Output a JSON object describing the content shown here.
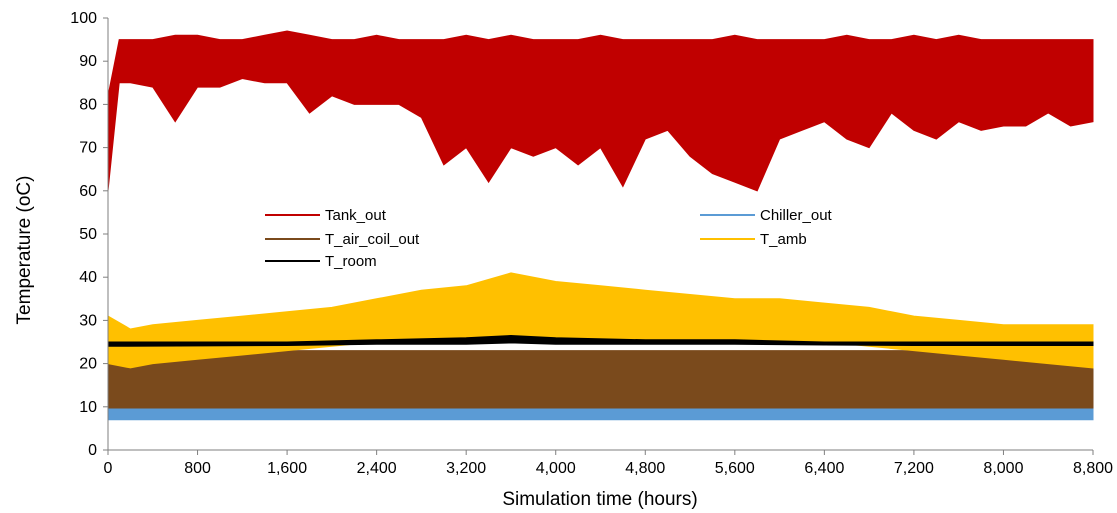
{
  "chart_data": {
    "type": "line",
    "title": "",
    "xlabel": "Simulation time (hours)",
    "ylabel": "Temperature (oC)",
    "xlim": [
      0,
      8800
    ],
    "ylim": [
      0,
      100
    ],
    "x_ticks": [
      0,
      800,
      1600,
      2400,
      3200,
      4000,
      4800,
      5600,
      6400,
      7200,
      8000,
      8800
    ],
    "x_tick_labels": [
      "0",
      "800",
      "1,600",
      "2,400",
      "3,200",
      "4,000",
      "4,800",
      "5,600",
      "6,400",
      "7,200",
      "8,000",
      "8,800"
    ],
    "y_ticks": [
      0,
      10,
      20,
      30,
      40,
      50,
      60,
      70,
      80,
      90,
      100
    ],
    "y_tick_labels": [
      "0",
      "10",
      "20",
      "30",
      "40",
      "50",
      "60",
      "70",
      "80",
      "90",
      "100"
    ],
    "grid": false,
    "legend_position": "center",
    "series": [
      {
        "name": "Tank_out",
        "color": "#c00000",
        "style": "band",
        "x": [
          0,
          100,
          200,
          400,
          600,
          800,
          1000,
          1200,
          1400,
          1600,
          1800,
          2000,
          2200,
          2400,
          2600,
          2800,
          3000,
          3200,
          3400,
          3600,
          3800,
          4000,
          4200,
          4400,
          4600,
          4800,
          5000,
          5200,
          5400,
          5600,
          5800,
          6000,
          6200,
          6400,
          6600,
          6800,
          7000,
          7200,
          7400,
          7600,
          7800,
          8000,
          8200,
          8400,
          8600,
          8800
        ],
        "upper": [
          82,
          95,
          95,
          95,
          96,
          96,
          95,
          95,
          96,
          97,
          96,
          95,
          95,
          96,
          95,
          95,
          95,
          96,
          95,
          96,
          95,
          95,
          95,
          96,
          95,
          95,
          95,
          95,
          95,
          96,
          95,
          95,
          95,
          95,
          96,
          95,
          95,
          96,
          95,
          96,
          95,
          95,
          95,
          95,
          95,
          95
        ],
        "lower": [
          60,
          85,
          85,
          84,
          76,
          84,
          84,
          86,
          85,
          85,
          78,
          82,
          80,
          80,
          80,
          77,
          66,
          70,
          62,
          70,
          68,
          70,
          66,
          70,
          61,
          72,
          74,
          68,
          64,
          62,
          60,
          72,
          74,
          76,
          72,
          70,
          78,
          74,
          72,
          76,
          74,
          75,
          75,
          78,
          75,
          76
        ]
      },
      {
        "name": "Chiller_out",
        "color": "#5b9bd5",
        "style": "band",
        "x": [
          0,
          8800
        ],
        "upper": [
          9.5,
          9.5
        ],
        "lower": [
          7,
          7
        ]
      },
      {
        "name": "T_air_coil_out",
        "color": "#7a4a1c",
        "style": "band",
        "x": [
          0,
          8800
        ],
        "upper": [
          23,
          23
        ],
        "lower": [
          9.5,
          9.5
        ]
      },
      {
        "name": "T_amb",
        "color": "#ffc000",
        "style": "band",
        "x": [
          0,
          200,
          400,
          800,
          1200,
          1600,
          2000,
          2400,
          2800,
          3200,
          3600,
          4000,
          4400,
          4800,
          5200,
          5600,
          6000,
          6400,
          6800,
          7200,
          7600,
          8000,
          8400,
          8800
        ],
        "upper": [
          31,
          28,
          29,
          30,
          31,
          32,
          33,
          35,
          37,
          38,
          41,
          39,
          38,
          37,
          36,
          35,
          35,
          34,
          33,
          31,
          30,
          29,
          29,
          29
        ],
        "lower": [
          20,
          19,
          20,
          21,
          22,
          23,
          24,
          25,
          25,
          25,
          25,
          25,
          25,
          25,
          25,
          25,
          25,
          25,
          24,
          23,
          22,
          21,
          20,
          19
        ]
      },
      {
        "name": "T_room",
        "color": "#000000",
        "style": "band",
        "x": [
          0,
          1600,
          2400,
          3200,
          3600,
          4000,
          4800,
          5600,
          6400,
          7200,
          8000,
          8800
        ],
        "upper": [
          25,
          25,
          25.5,
          26,
          26.5,
          26,
          25.5,
          25.5,
          25,
          25,
          25,
          25
        ],
        "lower": [
          24,
          24.2,
          24.5,
          24.5,
          24.8,
          24.5,
          24.5,
          24.5,
          24.3,
          24.2,
          24.2,
          24.2
        ]
      }
    ],
    "legend": [
      {
        "label": "Tank_out",
        "color": "#c00000"
      },
      {
        "label": "Chiller_out",
        "color": "#5b9bd5"
      },
      {
        "label": "T_air_coil_out",
        "color": "#7a4a1c"
      },
      {
        "label": "T_amb",
        "color": "#ffc000"
      },
      {
        "label": "T_room",
        "color": "#000000"
      }
    ]
  }
}
